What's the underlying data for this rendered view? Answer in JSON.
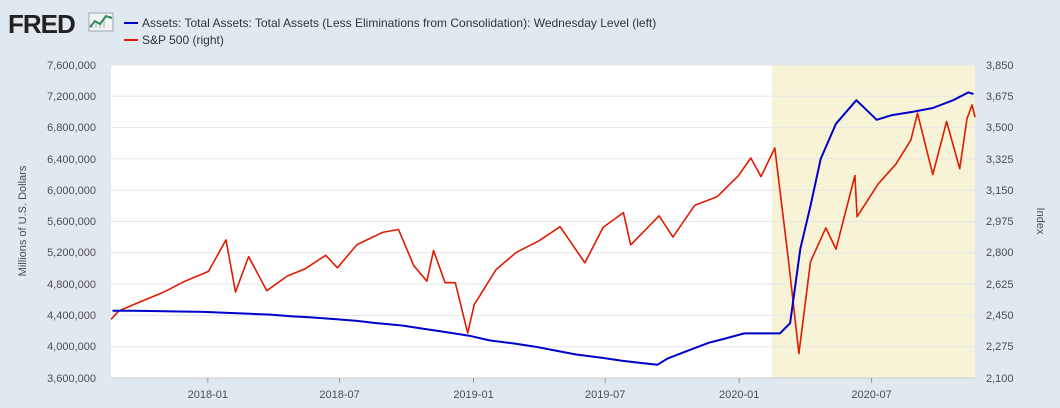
{
  "header": {
    "logo_text": "FRED"
  },
  "chart_data": {
    "type": "line",
    "legend": [
      {
        "label": "Assets: Total Assets: Total Assets (Less Eliminations from Consolidation): Wednesday Level (left)",
        "color": "#0000cc"
      },
      {
        "label": "S&P 500 (right)",
        "color": "#e01b00"
      }
    ],
    "left_axis": {
      "title": "Millions of U.S. Dollars",
      "range": [
        3600000,
        7600000
      ],
      "ticks": [
        "7,600,000",
        "7,200,000",
        "6,800,000",
        "6,400,000",
        "6,000,000",
        "5,600,000",
        "5,200,000",
        "4,800,000",
        "4,400,000",
        "4,000,000",
        "3,600,000"
      ]
    },
    "right_axis": {
      "title": "Index",
      "range": [
        2100,
        3850
      ],
      "ticks": [
        "3,850",
        "3,675",
        "3,500",
        "3,325",
        "3,150",
        "2,975",
        "2,800",
        "2,625",
        "2,450",
        "2,275",
        "2,100"
      ]
    },
    "x_axis": {
      "range": [
        "2017-08-21",
        "2020-11-20"
      ],
      "ticks": [
        {
          "date": "2018-01-01",
          "label": "2018-01"
        },
        {
          "date": "2018-07-01",
          "label": "2018-07"
        },
        {
          "date": "2019-01-01",
          "label": "2019-01"
        },
        {
          "date": "2019-07-01",
          "label": "2019-07"
        },
        {
          "date": "2020-01-01",
          "label": "2020-01"
        },
        {
          "date": "2020-07-01",
          "label": "2020-07"
        }
      ]
    },
    "recession_shading": {
      "start": "2020-02-15",
      "end": "2020-11-20",
      "color": "#f6f3d6"
    },
    "series": [
      {
        "name": "Assets: Total Assets: Total Assets (Less Eliminations from Consolidation): Wednesday Level (left)",
        "axis": "left",
        "color": "#0000cc",
        "points": [
          [
            "2017-08-23",
            4460000
          ],
          [
            "2017-09-20",
            4460000
          ],
          [
            "2017-10-25",
            4455000
          ],
          [
            "2017-11-22",
            4450000
          ],
          [
            "2017-12-27",
            4445000
          ],
          [
            "2018-01-24",
            4435000
          ],
          [
            "2018-02-28",
            4420000
          ],
          [
            "2018-03-28",
            4410000
          ],
          [
            "2018-04-25",
            4390000
          ],
          [
            "2018-05-23",
            4375000
          ],
          [
            "2018-06-27",
            4350000
          ],
          [
            "2018-07-25",
            4330000
          ],
          [
            "2018-08-22",
            4300000
          ],
          [
            "2018-09-26",
            4270000
          ],
          [
            "2018-10-24",
            4230000
          ],
          [
            "2018-11-21",
            4190000
          ],
          [
            "2018-12-26",
            4140000
          ],
          [
            "2019-01-23",
            4080000
          ],
          [
            "2019-02-27",
            4040000
          ],
          [
            "2019-03-27",
            4000000
          ],
          [
            "2019-04-24",
            3950000
          ],
          [
            "2019-05-22",
            3900000
          ],
          [
            "2019-06-26",
            3860000
          ],
          [
            "2019-07-24",
            3820000
          ],
          [
            "2019-08-21",
            3790000
          ],
          [
            "2019-09-11",
            3770000
          ],
          [
            "2019-09-25",
            3850000
          ],
          [
            "2019-10-23",
            3950000
          ],
          [
            "2019-11-20",
            4050000
          ],
          [
            "2019-12-11",
            4100000
          ],
          [
            "2020-01-08",
            4170000
          ],
          [
            "2020-02-05",
            4170000
          ],
          [
            "2020-02-26",
            4170000
          ],
          [
            "2020-03-11",
            4300000
          ],
          [
            "2020-03-25",
            5250000
          ],
          [
            "2020-04-08",
            5800000
          ],
          [
            "2020-04-22",
            6400000
          ],
          [
            "2020-05-13",
            6850000
          ],
          [
            "2020-06-10",
            7150000
          ],
          [
            "2020-07-08",
            6900000
          ],
          [
            "2020-07-29",
            6960000
          ],
          [
            "2020-08-26",
            7000000
          ],
          [
            "2020-09-23",
            7050000
          ],
          [
            "2020-10-21",
            7150000
          ],
          [
            "2020-11-11",
            7250000
          ],
          [
            "2020-11-18",
            7230000
          ]
        ]
      },
      {
        "name": "S&P 500 (right)",
        "axis": "right",
        "color": "#e01b00",
        "points": [
          [
            "2017-08-21",
            2428
          ],
          [
            "2017-09-01",
            2476
          ],
          [
            "2017-10-02",
            2529
          ],
          [
            "2017-11-01",
            2579
          ],
          [
            "2017-12-01",
            2642
          ],
          [
            "2018-01-02",
            2696
          ],
          [
            "2018-01-26",
            2872
          ],
          [
            "2018-02-08",
            2581
          ],
          [
            "2018-02-26",
            2779
          ],
          [
            "2018-03-23",
            2588
          ],
          [
            "2018-04-20",
            2670
          ],
          [
            "2018-05-15",
            2711
          ],
          [
            "2018-06-12",
            2786
          ],
          [
            "2018-06-28",
            2716
          ],
          [
            "2018-07-25",
            2846
          ],
          [
            "2018-08-29",
            2914
          ],
          [
            "2018-09-20",
            2930
          ],
          [
            "2018-10-11",
            2728
          ],
          [
            "2018-10-29",
            2641
          ],
          [
            "2018-11-07",
            2813
          ],
          [
            "2018-11-23",
            2633
          ],
          [
            "2018-12-07",
            2633
          ],
          [
            "2018-12-24",
            2351
          ],
          [
            "2019-01-02",
            2510
          ],
          [
            "2019-02-01",
            2706
          ],
          [
            "2019-03-01",
            2803
          ],
          [
            "2019-04-01",
            2867
          ],
          [
            "2019-04-30",
            2946
          ],
          [
            "2019-06-03",
            2744
          ],
          [
            "2019-06-28",
            2942
          ],
          [
            "2019-07-26",
            3025
          ],
          [
            "2019-08-05",
            2844
          ],
          [
            "2019-09-13",
            3007
          ],
          [
            "2019-10-02",
            2888
          ],
          [
            "2019-11-01",
            3066
          ],
          [
            "2019-12-02",
            3114
          ],
          [
            "2019-12-31",
            3231
          ],
          [
            "2020-01-17",
            3330
          ],
          [
            "2020-01-31",
            3226
          ],
          [
            "2020-02-19",
            3386
          ],
          [
            "2020-03-09",
            2747
          ],
          [
            "2020-03-23",
            2237
          ],
          [
            "2020-04-08",
            2750
          ],
          [
            "2020-04-29",
            2939
          ],
          [
            "2020-05-13",
            2820
          ],
          [
            "2020-06-08",
            3232
          ],
          [
            "2020-06-11",
            3002
          ],
          [
            "2020-07-10",
            3185
          ],
          [
            "2020-08-03",
            3294
          ],
          [
            "2020-08-24",
            3431
          ],
          [
            "2020-09-02",
            3580
          ],
          [
            "2020-09-23",
            3237
          ],
          [
            "2020-10-12",
            3534
          ],
          [
            "2020-10-30",
            3270
          ],
          [
            "2020-11-09",
            3550
          ],
          [
            "2020-11-16",
            3627
          ],
          [
            "2020-11-20",
            3558
          ]
        ]
      }
    ]
  }
}
